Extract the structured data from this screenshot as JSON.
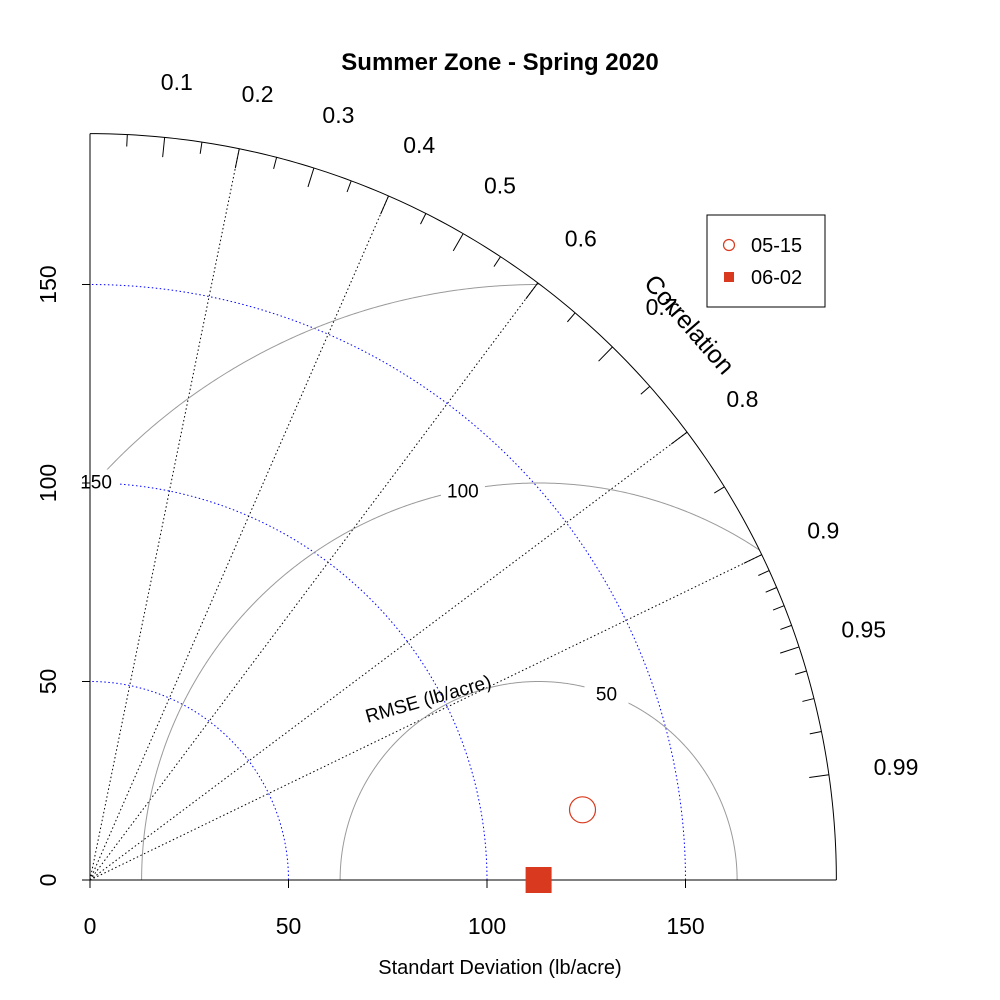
{
  "chart_data": {
    "type": "scatter",
    "subtype": "taylor-diagram",
    "title": "Summer Zone - Spring 2020",
    "xlabel": "Standart Deviation (lb/acre)",
    "ylabel": "",
    "correlation_label": "Correlation",
    "rmse_label": "RMSE (lb/acre)",
    "sd_ticks": [
      0,
      50,
      100,
      150
    ],
    "sd_max": 188,
    "sd_reference": 113,
    "correlation_ticks": [
      "0.1",
      "0.2",
      "0.3",
      "0.4",
      "0.5",
      "0.6",
      "0.7",
      "0.8",
      "0.9",
      "0.95",
      "0.99"
    ],
    "rmse_contours": [
      50,
      100,
      150
    ],
    "rmse_labels": [
      "50",
      "100",
      "150"
    ],
    "sd_arcs": [
      50,
      100,
      150
    ],
    "series": [
      {
        "name": "05-15",
        "marker": "open-circle",
        "color": "#d9391e",
        "sd": 125.3,
        "correlation": 0.99
      },
      {
        "name": "06-02",
        "marker": "filled-square",
        "color": "#d9391e",
        "sd": 113,
        "correlation": 1.0
      }
    ],
    "legend_position": "top-right",
    "colors": {
      "axis": "#000000",
      "grid_corr": "#000000",
      "sd_arc": "#0000ff",
      "rmse": "#9a9a9a",
      "marker": "#d9391e"
    }
  }
}
